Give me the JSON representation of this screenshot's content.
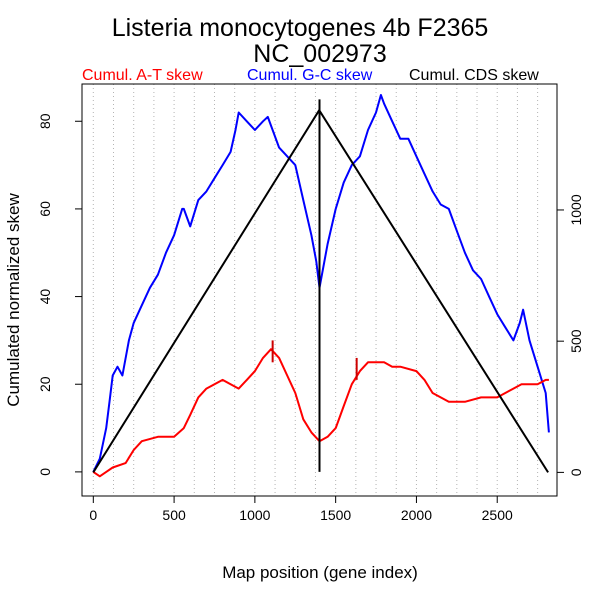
{
  "chart_data": {
    "type": "line",
    "title": "Listeria monocytogenes 4b F2365",
    "subtitle": "NC_002973",
    "xlabel": "Map position (gene index)",
    "ylabel": "Cumulated normalized skew",
    "xlim": [
      0,
      2820
    ],
    "ylim": [
      0,
      85
    ],
    "y2lim": [
      0,
      1400
    ],
    "x_ticks": [
      0,
      500,
      1000,
      1500,
      2000,
      2500
    ],
    "y_ticks": [
      0,
      20,
      40,
      60,
      80
    ],
    "y2_ticks": [
      0,
      500,
      1000
    ],
    "gridlines_x": [
      0,
      125,
      250,
      375,
      500,
      625,
      750,
      875,
      1000,
      1125,
      1250,
      1375,
      1500,
      1625,
      1750,
      1875,
      2000,
      2125,
      2250,
      2375,
      2500,
      2625,
      2750
    ],
    "legend": [
      {
        "label": "Cumul. A-T skew",
        "color": "#ff0000"
      },
      {
        "label": "Cumul. G-C skew",
        "color": "#0000ff"
      },
      {
        "label": "Cumul. CDS skew",
        "color": "#000000"
      }
    ],
    "series": [
      {
        "name": "Cumul. A-T skew",
        "color": "#ff0000",
        "x": [
          0,
          40,
          80,
          120,
          200,
          250,
          300,
          400,
          500,
          560,
          600,
          650,
          700,
          750,
          800,
          850,
          900,
          950,
          1000,
          1050,
          1100,
          1150,
          1200,
          1250,
          1300,
          1350,
          1400,
          1450,
          1500,
          1550,
          1600,
          1650,
          1700,
          1750,
          1800,
          1850,
          1900,
          2000,
          2050,
          2100,
          2150,
          2200,
          2300,
          2400,
          2500,
          2550,
          2600,
          2650,
          2700,
          2750,
          2800,
          2820
        ],
        "y": [
          0,
          -1,
          0,
          1,
          2,
          5,
          7,
          8,
          8,
          10,
          13,
          17,
          19,
          20,
          21,
          20,
          19,
          21,
          23,
          26,
          28,
          26,
          22,
          18,
          12,
          9,
          7,
          8,
          10,
          15,
          20,
          23,
          25,
          25,
          25,
          24,
          24,
          23,
          21,
          18,
          17,
          16,
          16,
          17,
          17,
          18,
          19,
          20,
          20,
          20,
          21,
          21
        ]
      },
      {
        "name": "Cumul. G-C skew",
        "color": "#0000ff",
        "x": [
          0,
          40,
          80,
          100,
          120,
          150,
          180,
          220,
          250,
          300,
          350,
          400,
          450,
          500,
          550,
          560,
          600,
          650,
          700,
          750,
          800,
          850,
          880,
          900,
          950,
          1000,
          1050,
          1080,
          1100,
          1150,
          1200,
          1250,
          1300,
          1350,
          1380,
          1400,
          1450,
          1500,
          1550,
          1600,
          1650,
          1700,
          1750,
          1780,
          1800,
          1850,
          1900,
          1950,
          2000,
          2050,
          2100,
          2150,
          2200,
          2250,
          2300,
          2350,
          2400,
          2450,
          2500,
          2550,
          2600,
          2640,
          2660,
          2700,
          2750,
          2800,
          2820
        ],
        "y": [
          0,
          3,
          10,
          16,
          22,
          24,
          22,
          30,
          34,
          38,
          42,
          45,
          50,
          54,
          60,
          60,
          56,
          62,
          64,
          67,
          70,
          73,
          78,
          82,
          80,
          78,
          80,
          81,
          79,
          74,
          72,
          70,
          62,
          54,
          48,
          42,
          52,
          60,
          66,
          70,
          72,
          78,
          82,
          86,
          84,
          80,
          76,
          76,
          72,
          68,
          64,
          61,
          60,
          55,
          50,
          46,
          44,
          40,
          36,
          33,
          30,
          34,
          37,
          30,
          24,
          18,
          9
        ]
      },
      {
        "name": "Cumul. CDS skew",
        "color": "#000000",
        "axis": "right",
        "x": [
          0,
          1398,
          2815
        ],
        "y": [
          0,
          1380,
          0
        ]
      }
    ],
    "vertical_markers": [
      {
        "x": 1400,
        "y_from": 0,
        "y_to": 85,
        "color": "#000000"
      },
      {
        "x": 1110,
        "y_from": 25,
        "y_to": 30,
        "color": "#cc0000"
      },
      {
        "x": 1630,
        "y_from": 21,
        "y_to": 26,
        "color": "#cc0000"
      }
    ]
  }
}
